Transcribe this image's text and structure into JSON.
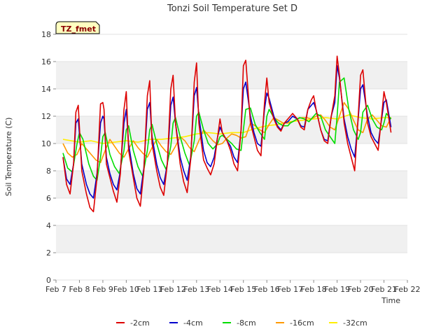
{
  "chart_data": {
    "type": "line",
    "title": "Tonzi Soil Temperature Set D",
    "xlabel": "Time",
    "ylabel": "Soil Temperature (C)",
    "badge": "TZ_fmet",
    "ylim": [
      0,
      18
    ],
    "yticks": [
      0,
      2,
      4,
      6,
      8,
      10,
      12,
      14,
      16,
      18
    ],
    "xlim": [
      7,
      22
    ],
    "xtick_values": [
      7,
      8,
      9,
      10,
      11,
      12,
      13,
      14,
      15,
      16,
      17,
      18,
      19,
      20,
      21,
      22
    ],
    "xtick_labels": [
      "Feb 7",
      "Feb 8",
      "Feb 9",
      "Feb 10",
      "Feb 11",
      "Feb 12",
      "Feb 13",
      "Feb 14",
      "Feb 15",
      "Feb 16",
      "Feb 17",
      "Feb 18",
      "Feb 19",
      "Feb 20",
      "Feb 21",
      "Feb 22"
    ],
    "grid": "horizontal bands",
    "legend_position": "bottom",
    "colors": {
      "-2cm": "#dd0000",
      "-4cm": "#0000cc",
      "-8cm": "#00dd00",
      "-16cm": "#ff9900",
      "-32cm": "#ffee00"
    },
    "series": [
      {
        "name": "-2cm",
        "x": [
          7.3,
          7.45,
          7.6,
          7.75,
          7.85,
          7.95,
          8.1,
          8.3,
          8.45,
          8.6,
          8.75,
          8.9,
          9.0,
          9.05,
          9.15,
          9.3,
          9.45,
          9.6,
          9.75,
          9.9,
          10.0,
          10.1,
          10.3,
          10.45,
          10.6,
          10.75,
          10.9,
          11.0,
          11.1,
          11.3,
          11.45,
          11.6,
          11.75,
          11.9,
          12.0,
          12.1,
          12.3,
          12.45,
          12.6,
          12.75,
          12.9,
          13.0,
          13.1,
          13.3,
          13.45,
          13.6,
          13.75,
          13.9,
          14.0,
          14.1,
          14.3,
          14.45,
          14.6,
          14.75,
          14.9,
          15.0,
          15.1,
          15.3,
          15.45,
          15.6,
          15.75,
          15.9,
          16.0,
          16.1,
          16.3,
          16.45,
          16.6,
          16.75,
          16.9,
          17.0,
          17.1,
          17.3,
          17.45,
          17.6,
          17.75,
          17.9,
          18.0,
          18.1,
          18.3,
          18.45,
          18.6,
          18.75,
          18.9,
          19.0,
          19.1,
          19.3,
          19.45,
          19.6,
          19.75,
          19.9,
          20.0,
          20.1,
          20.3,
          20.45,
          20.6,
          20.75,
          20.9,
          21.0,
          21.1,
          21.3
        ],
        "values": [
          9.0,
          7.0,
          6.3,
          8.5,
          12.3,
          12.8,
          8.0,
          6.3,
          5.3,
          5.0,
          7.5,
          12.9,
          13.0,
          12.5,
          8.5,
          7.5,
          6.5,
          5.7,
          7.8,
          12.5,
          13.8,
          9.5,
          7.5,
          6.0,
          5.4,
          8.0,
          13.5,
          14.6,
          10.0,
          8.0,
          6.8,
          6.2,
          8.5,
          14.0,
          15.0,
          11.5,
          8.5,
          7.2,
          6.4,
          8.8,
          14.5,
          15.9,
          11.5,
          8.8,
          8.2,
          7.7,
          8.5,
          10.5,
          11.8,
          10.8,
          10.2,
          9.5,
          8.5,
          8.0,
          11.0,
          15.7,
          16.1,
          11.5,
          10.5,
          9.5,
          9.1,
          13.0,
          14.8,
          13.0,
          11.8,
          11.2,
          10.9,
          11.5,
          11.8,
          12.0,
          12.2,
          11.8,
          11.2,
          11.0,
          12.5,
          13.2,
          13.5,
          12.5,
          11.0,
          10.2,
          10.0,
          12.0,
          13.5,
          16.4,
          15.0,
          11.5,
          10.0,
          9.0,
          8.0,
          12.0,
          15.0,
          15.4,
          11.5,
          10.5,
          10.0,
          9.5,
          12.0,
          13.8,
          13.0,
          10.8
        ]
      },
      {
        "name": "-4cm",
        "x": [
          7.3,
          7.45,
          7.6,
          7.75,
          7.85,
          7.95,
          8.1,
          8.3,
          8.45,
          8.6,
          8.75,
          8.9,
          9.0,
          9.05,
          9.15,
          9.3,
          9.45,
          9.6,
          9.75,
          9.9,
          10.0,
          10.1,
          10.3,
          10.45,
          10.6,
          10.75,
          10.9,
          11.0,
          11.1,
          11.3,
          11.45,
          11.6,
          11.75,
          11.9,
          12.0,
          12.1,
          12.3,
          12.45,
          12.6,
          12.75,
          12.9,
          13.0,
          13.1,
          13.3,
          13.45,
          13.6,
          13.75,
          13.9,
          14.0,
          14.1,
          14.3,
          14.45,
          14.6,
          14.75,
          14.9,
          15.0,
          15.1,
          15.3,
          15.45,
          15.6,
          15.75,
          15.9,
          16.0,
          16.1,
          16.3,
          16.45,
          16.6,
          16.75,
          16.9,
          17.0,
          17.1,
          17.3,
          17.45,
          17.6,
          17.75,
          17.9,
          18.0,
          18.1,
          18.3,
          18.45,
          18.6,
          18.75,
          18.9,
          19.0,
          19.1,
          19.3,
          19.45,
          19.6,
          19.75,
          19.9,
          20.0,
          20.1,
          20.3,
          20.45,
          20.6,
          20.75,
          20.9,
          21.0,
          21.1,
          21.3
        ],
        "values": [
          9.0,
          7.4,
          7.0,
          8.5,
          11.5,
          11.8,
          8.5,
          7.0,
          6.3,
          6.0,
          7.8,
          11.5,
          12.0,
          11.8,
          9.0,
          7.8,
          7.0,
          6.6,
          8.0,
          11.5,
          12.5,
          10.0,
          7.8,
          6.7,
          6.3,
          8.2,
          12.5,
          13.0,
          10.5,
          8.5,
          7.5,
          7.0,
          8.5,
          12.8,
          13.4,
          11.5,
          9.0,
          8.0,
          7.3,
          9.0,
          13.5,
          14.1,
          12.0,
          9.5,
          8.6,
          8.3,
          9.0,
          10.5,
          11.2,
          10.8,
          10.2,
          9.8,
          9.0,
          8.6,
          11.0,
          14.0,
          14.5,
          12.0,
          10.8,
          10.0,
          9.8,
          12.5,
          13.7,
          13.3,
          12.0,
          11.3,
          11.0,
          11.5,
          11.6,
          11.8,
          12.0,
          11.8,
          11.3,
          11.2,
          12.5,
          12.8,
          13.0,
          12.5,
          11.0,
          10.3,
          10.2,
          12.0,
          13.0,
          15.7,
          14.8,
          11.8,
          10.5,
          9.6,
          9.0,
          11.8,
          14.0,
          14.3,
          12.0,
          10.8,
          10.3,
          10.0,
          11.8,
          13.0,
          13.2,
          11.2
        ]
      },
      {
        "name": "-8cm",
        "x": [
          7.3,
          7.5,
          7.7,
          7.9,
          8.0,
          8.15,
          8.4,
          8.6,
          8.75,
          8.9,
          9.0,
          9.1,
          9.3,
          9.5,
          9.7,
          9.9,
          10.0,
          10.1,
          10.3,
          10.5,
          10.7,
          10.9,
          11.0,
          11.1,
          11.3,
          11.5,
          11.7,
          11.9,
          12.0,
          12.1,
          12.3,
          12.5,
          12.7,
          12.9,
          13.0,
          13.1,
          13.3,
          13.5,
          13.7,
          13.9,
          14.0,
          14.1,
          14.3,
          14.5,
          14.7,
          14.9,
          15.0,
          15.1,
          15.3,
          15.5,
          15.7,
          15.9,
          16.0,
          16.1,
          16.3,
          16.5,
          16.7,
          16.9,
          17.0,
          17.2,
          17.4,
          17.6,
          17.8,
          18.0,
          18.1,
          18.3,
          18.5,
          18.7,
          18.9,
          19.0,
          19.1,
          19.3,
          19.5,
          19.7,
          19.9,
          20.0,
          20.1,
          20.3,
          20.5,
          20.7,
          20.9,
          21.0,
          21.1,
          21.3
        ],
        "values": [
          9.3,
          8.2,
          7.9,
          10.0,
          10.8,
          10.3,
          8.5,
          7.6,
          7.3,
          9.0,
          10.5,
          10.8,
          9.2,
          8.3,
          7.8,
          9.5,
          11.0,
          11.3,
          9.5,
          8.3,
          7.6,
          9.5,
          11.0,
          11.4,
          10.0,
          8.8,
          8.1,
          9.8,
          11.5,
          11.9,
          10.5,
          9.3,
          8.4,
          10.2,
          12.0,
          12.3,
          11.0,
          10.0,
          9.6,
          10.0,
          10.5,
          10.6,
          10.3,
          10.0,
          9.6,
          9.5,
          11.0,
          12.5,
          12.6,
          11.4,
          10.8,
          10.3,
          12.0,
          12.5,
          11.9,
          11.5,
          11.3,
          11.3,
          11.5,
          11.7,
          11.9,
          11.8,
          11.6,
          12.0,
          12.2,
          12.0,
          11.0,
          10.5,
          10.0,
          12.0,
          14.5,
          14.8,
          12.5,
          11.0,
          10.3,
          10.8,
          12.3,
          12.8,
          11.8,
          11.2,
          11.0,
          11.5,
          12.2,
          11.8
        ]
      },
      {
        "name": "-16cm",
        "x": [
          7.3,
          7.5,
          7.7,
          7.9,
          8.1,
          8.3,
          8.5,
          8.7,
          8.9,
          9.1,
          9.3,
          9.5,
          9.7,
          9.9,
          10.1,
          10.3,
          10.5,
          10.7,
          10.9,
          11.1,
          11.3,
          11.5,
          11.7,
          11.9,
          12.1,
          12.3,
          12.5,
          12.7,
          12.9,
          13.1,
          13.3,
          13.5,
          13.7,
          13.9,
          14.1,
          14.3,
          14.5,
          14.7,
          14.9,
          15.1,
          15.3,
          15.5,
          15.7,
          15.9,
          16.1,
          16.3,
          16.5,
          16.7,
          16.9,
          17.1,
          17.3,
          17.5,
          17.7,
          17.9,
          18.1,
          18.3,
          18.5,
          18.7,
          18.9,
          19.1,
          19.3,
          19.5,
          19.7,
          19.9,
          20.1,
          20.3,
          20.5,
          20.7,
          20.9,
          21.1,
          21.3
        ],
        "values": [
          10.0,
          9.3,
          9.0,
          9.2,
          10.0,
          9.6,
          9.2,
          8.8,
          8.6,
          9.5,
          10.3,
          9.8,
          9.3,
          9.0,
          9.6,
          10.2,
          9.7,
          9.3,
          9.0,
          9.7,
          10.3,
          9.8,
          9.4,
          9.2,
          9.8,
          10.5,
          10.2,
          9.7,
          9.4,
          10.2,
          11.0,
          10.6,
          10.2,
          9.9,
          10.0,
          10.4,
          10.7,
          10.6,
          10.4,
          10.5,
          11.5,
          11.3,
          11.0,
          10.8,
          11.4,
          11.9,
          11.7,
          11.5,
          11.5,
          11.6,
          11.8,
          11.9,
          11.9,
          11.8,
          12.0,
          12.1,
          11.7,
          11.2,
          11.0,
          12.0,
          13.0,
          12.5,
          11.7,
          11.0,
          10.8,
          11.8,
          12.1,
          11.7,
          11.3,
          11.2,
          11.9
        ]
      },
      {
        "name": "-32cm",
        "x": [
          7.3,
          8.0,
          8.5,
          9.0,
          9.5,
          10.0,
          10.5,
          11.0,
          11.5,
          12.0,
          12.5,
          13.0,
          13.5,
          14.0,
          14.5,
          15.0,
          15.5,
          16.0,
          16.5,
          17.0,
          17.5,
          18.0,
          18.5,
          19.0,
          19.5,
          20.0,
          20.5,
          21.0,
          21.3
        ],
        "values": [
          10.3,
          10.1,
          10.2,
          10.0,
          10.1,
          10.2,
          10.1,
          10.3,
          10.3,
          10.4,
          10.5,
          10.7,
          10.8,
          10.7,
          10.8,
          10.8,
          11.1,
          11.3,
          11.4,
          11.6,
          11.7,
          11.8,
          11.9,
          11.8,
          12.1,
          11.9,
          11.8,
          11.9,
          11.9
        ]
      }
    ]
  }
}
